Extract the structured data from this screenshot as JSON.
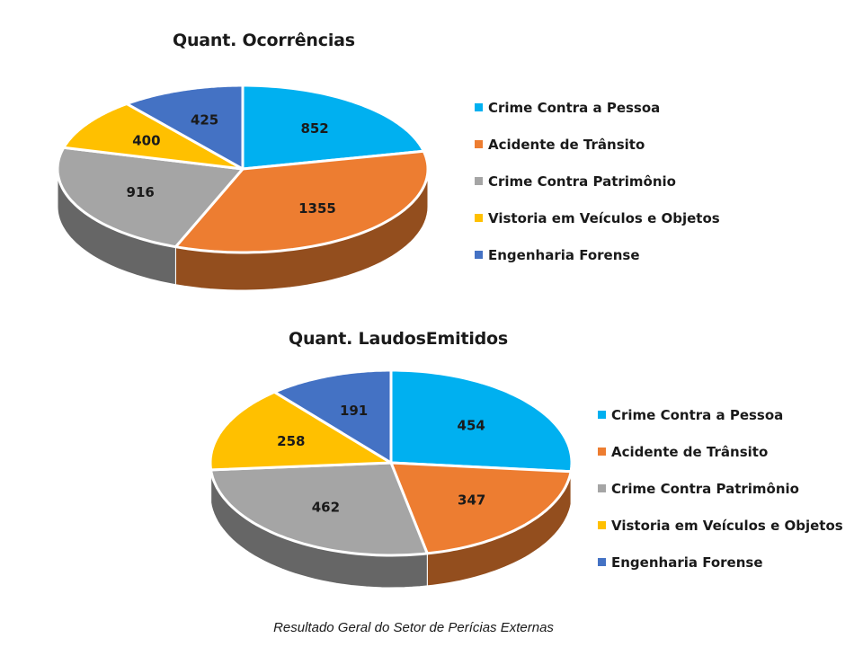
{
  "colors": {
    "crime_pessoa": "#00b0f0",
    "acidente": "#ed7d31",
    "patrimonio": "#a5a5a5",
    "vistoria": "#ffc000",
    "engenharia": "#4472c4"
  },
  "chart_data": [
    {
      "type": "pie",
      "style": "3d",
      "title": "Quant. Ocorrências",
      "legend_position": "right",
      "slices": [
        {
          "label": "Crime Contra a Pessoa",
          "value": 852,
          "color_key": "crime_pessoa"
        },
        {
          "label": "Acidente de Trânsito",
          "value": 1355,
          "color_key": "acidente"
        },
        {
          "label": "Crime Contra Patrimônio",
          "value": 916,
          "color_key": "patrimonio"
        },
        {
          "label": "Vistoria em Veículos e Objetos",
          "value": 400,
          "color_key": "vistoria"
        },
        {
          "label": "Engenharia Forense",
          "value": 425,
          "color_key": "engenharia"
        }
      ]
    },
    {
      "type": "pie",
      "style": "3d",
      "title": "Quant. LaudosEmitidos",
      "legend_position": "right",
      "slices": [
        {
          "label": "Crime Contra a Pessoa",
          "value": 454,
          "color_key": "crime_pessoa"
        },
        {
          "label": "Acidente de Trânsito",
          "value": 347,
          "color_key": "acidente"
        },
        {
          "label": "Crime Contra Patrimônio",
          "value": 462,
          "color_key": "patrimonio"
        },
        {
          "label": "Vistoria em Veículos e Objetos",
          "value": 258,
          "color_key": "vistoria"
        },
        {
          "label": "Engenharia Forense",
          "value": 191,
          "color_key": "engenharia"
        }
      ]
    }
  ],
  "caption": "Resultado Geral do Setor de Perícias Externas"
}
